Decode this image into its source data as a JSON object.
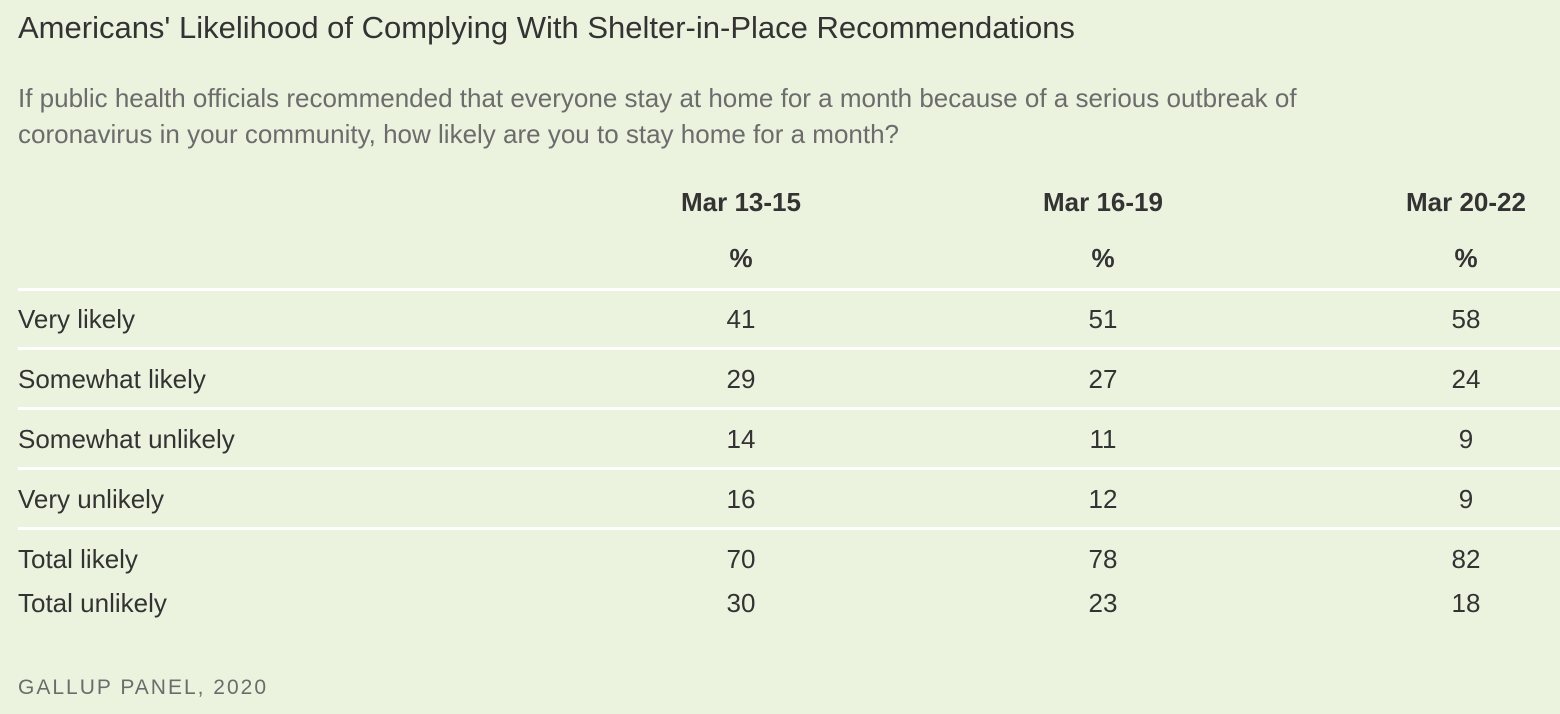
{
  "title": "Americans' Likelihood of Complying With Shelter-in-Place Recommendations",
  "subtitle": "If public health officials recommended that everyone stay at home for a month because of a serious outbreak of coronavirus in your community, how likely are you to stay home for a month?",
  "source": "GALLUP PANEL, 2020",
  "colors": {
    "background": "#ebf3df",
    "text": "#333333",
    "muted": "#6c6c6c",
    "divider": "#ffffff"
  },
  "chart_data": {
    "type": "table",
    "title": "Americans' Likelihood of Complying With Shelter-in-Place Recommendations",
    "unit": "%",
    "columns": [
      "Mar 13-15",
      "Mar 16-19",
      "Mar 20-22"
    ],
    "rows": [
      {
        "label": "Very likely",
        "values": [
          "41",
          "51",
          "58"
        ]
      },
      {
        "label": "Somewhat likely",
        "values": [
          "29",
          "27",
          "24"
        ]
      },
      {
        "label": "Somewhat unlikely",
        "values": [
          "14",
          "11",
          "9"
        ]
      },
      {
        "label": "Very unlikely",
        "values": [
          "16",
          "12",
          "9"
        ]
      },
      {
        "label": "Total likely",
        "values": [
          "70",
          "78",
          "82"
        ]
      },
      {
        "label": "Total unlikely",
        "values": [
          "30",
          "23",
          "18"
        ]
      }
    ]
  }
}
